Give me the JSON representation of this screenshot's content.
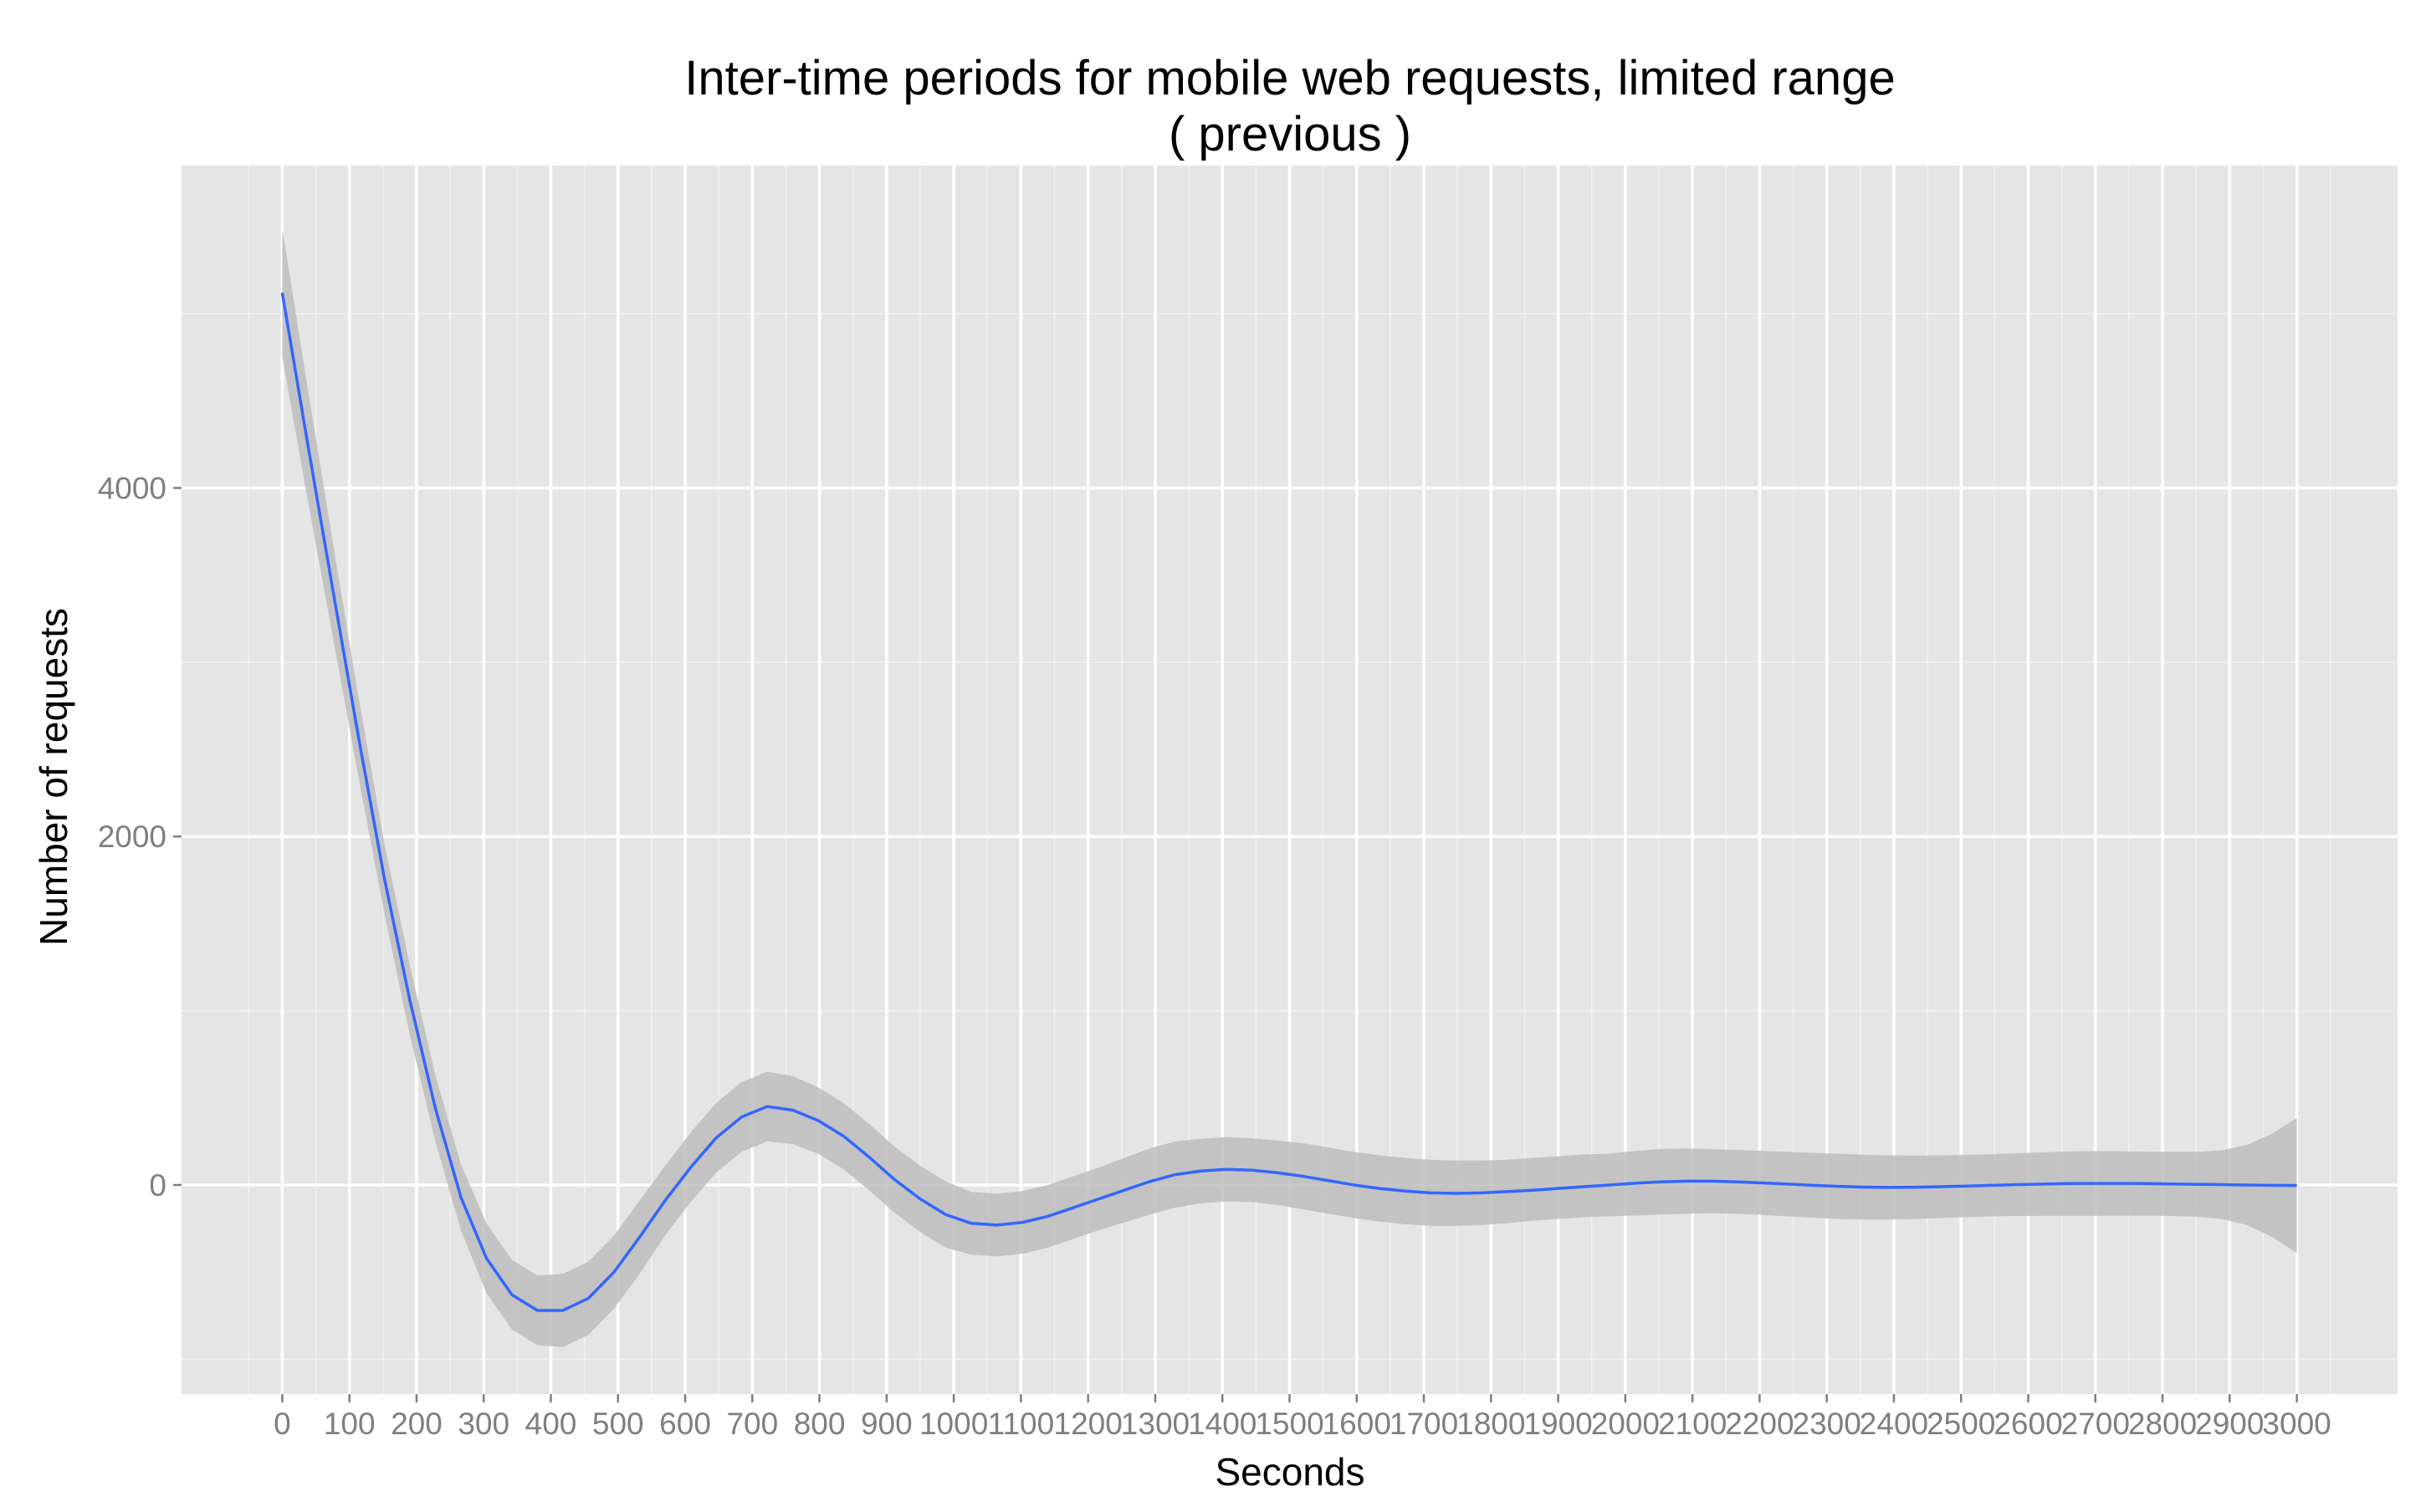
{
  "chart_data": {
    "type": "line",
    "title": "Inter-time periods for mobile web requests, limited range",
    "subtitle": "( previous )",
    "xlabel": "Seconds",
    "ylabel": "Number of requests",
    "xlim": [
      -150,
      3150
    ],
    "ylim": [
      -1200,
      5850
    ],
    "x_ticks": [
      0,
      100,
      200,
      300,
      400,
      500,
      600,
      700,
      800,
      900,
      1000,
      1100,
      1200,
      1300,
      1400,
      1500,
      1600,
      1700,
      1800,
      1900,
      2000,
      2100,
      2200,
      2300,
      2400,
      2500,
      2600,
      2700,
      2800,
      2900,
      3000
    ],
    "x_tick_labels": [
      "0",
      "100",
      "200",
      "300",
      "400",
      "500",
      "600",
      "700",
      "800",
      "900",
      "1000",
      "1100",
      "1200",
      "1300",
      "1400",
      "1500",
      "1600",
      "1700",
      "1800",
      "1900",
      "2000",
      "2100",
      "2200",
      "2300",
      "2400",
      "2500",
      "2600",
      "2700",
      "2800",
      "2900",
      "3000"
    ],
    "y_ticks": [
      0,
      2000,
      4000
    ],
    "y_tick_labels": [
      "0",
      "2000",
      "4000"
    ],
    "grid": true,
    "legend": "none",
    "colors": {
      "panel": "#e5e5e5",
      "grid": "#ffffff",
      "line": "#3366ff",
      "ribbon": "#bdbdbd"
    },
    "series": [
      {
        "x": [
          0,
          38,
          76,
          114,
          152,
          190,
          228,
          266,
          304,
          342,
          380,
          418,
          456,
          494,
          532,
          570,
          608,
          646,
          684,
          722,
          760,
          798,
          836,
          874,
          912,
          950,
          988,
          1026,
          1064,
          1102,
          1140,
          1178,
          1216,
          1254,
          1292,
          1330,
          1368,
          1406,
          1444,
          1482,
          1520,
          1558,
          1596,
          1634,
          1672,
          1710,
          1748,
          1786,
          1824,
          1862,
          1900,
          1938,
          1976,
          2014,
          2052,
          2090,
          2128,
          2166,
          2204,
          2242,
          2280,
          2318,
          2356,
          2394,
          2432,
          2470,
          2508,
          2546,
          2584,
          2622,
          2660,
          2698,
          2736,
          2774,
          2812,
          2850,
          2888,
          2926,
          2964,
          3000
        ],
        "y": [
          5120,
          4250,
          3400,
          2560,
          1760,
          1060,
          440,
          -70,
          -420,
          -630,
          -720,
          -720,
          -650,
          -500,
          -300,
          -90,
          100,
          270,
          390,
          450,
          430,
          370,
          280,
          160,
          30,
          -80,
          -170,
          -220,
          -230,
          -215,
          -180,
          -130,
          -80,
          -30,
          20,
          60,
          80,
          90,
          85,
          70,
          50,
          25,
          0,
          -20,
          -35,
          -45,
          -48,
          -45,
          -38,
          -30,
          -20,
          -10,
          0,
          10,
          18,
          22,
          22,
          18,
          12,
          5,
          -2,
          -8,
          -12,
          -14,
          -13,
          -10,
          -6,
          -2,
          2,
          5,
          8,
          9,
          9,
          8,
          6,
          4,
          2,
          0,
          -2,
          -3
        ],
        "lower": [
          4750,
          3930,
          3130,
          2330,
          1560,
          860,
          250,
          -260,
          -620,
          -830,
          -920,
          -930,
          -860,
          -710,
          -510,
          -290,
          -100,
          70,
          190,
          250,
          235,
          180,
          90,
          -30,
          -160,
          -270,
          -360,
          -400,
          -410,
          -395,
          -360,
          -310,
          -260,
          -215,
          -170,
          -130,
          -105,
          -95,
          -98,
          -115,
          -140,
          -165,
          -190,
          -210,
          -225,
          -235,
          -235,
          -230,
          -220,
          -205,
          -195,
          -185,
          -180,
          -175,
          -170,
          -165,
          -162,
          -165,
          -172,
          -180,
          -188,
          -195,
          -198,
          -198,
          -195,
          -190,
          -185,
          -180,
          -178,
          -177,
          -177,
          -177,
          -176,
          -176,
          -178,
          -182,
          -195,
          -230,
          -300,
          -390
        ],
        "upper": [
          5490,
          4570,
          3670,
          2790,
          1960,
          1260,
          630,
          120,
          -220,
          -430,
          -520,
          -510,
          -440,
          -290,
          -90,
          110,
          300,
          470,
          590,
          650,
          625,
          560,
          470,
          350,
          220,
          110,
          20,
          -40,
          -50,
          -35,
          0,
          50,
          100,
          155,
          210,
          250,
          265,
          275,
          268,
          255,
          240,
          215,
          190,
          170,
          155,
          145,
          140,
          140,
          145,
          155,
          165,
          175,
          180,
          195,
          206,
          209,
          206,
          201,
          196,
          190,
          184,
          179,
          174,
          170,
          169,
          170,
          173,
          176,
          182,
          187,
          193,
          195,
          194,
          192,
          190,
          190,
          199,
          230,
          296,
          384
        ]
      }
    ]
  }
}
